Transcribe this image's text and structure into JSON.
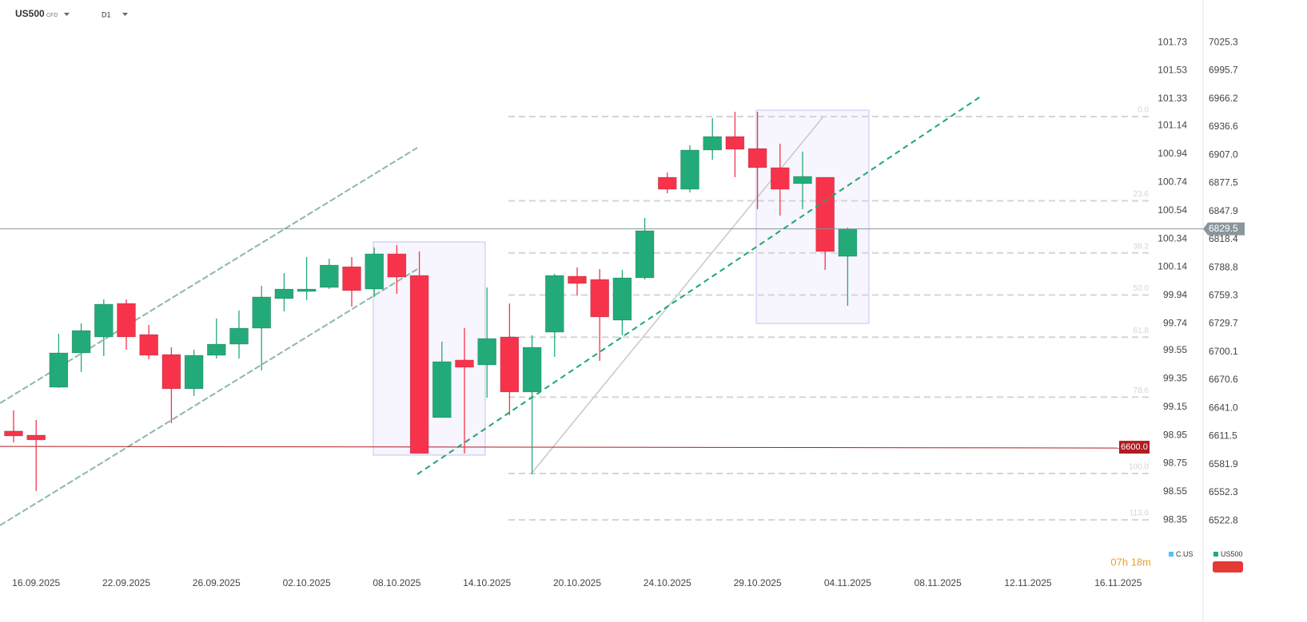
{
  "header": {
    "symbol": "US500",
    "instrument_type": "CFD",
    "timeframe": "D1"
  },
  "chart_data": {
    "type": "candlestick",
    "categories": [
      null,
      "16.09.2025",
      null,
      null,
      null,
      "22.09.2025",
      null,
      null,
      null,
      "26.09.2025",
      null,
      null,
      null,
      "02.10.2025",
      null,
      null,
      null,
      "08.10.2025",
      null,
      null,
      null,
      "14.10.2025",
      null,
      null,
      null,
      "20.10.2025",
      null,
      null,
      null,
      "24.10.2025",
      null,
      null,
      null,
      "29.10.2025",
      null,
      null,
      null,
      "04.11.2025",
      null,
      null,
      null,
      "08.11.2025",
      null,
      null,
      null,
      "12.11.2025",
      null,
      null,
      null,
      "16.11.2025"
    ],
    "series": [
      {
        "name": "US500",
        "up_color": "#22ab78",
        "down_color": "#f7334b",
        "open": [
          6617.0,
          6612.7,
          6663.0,
          6699.1,
          6715.9,
          6751.1,
          6718.4,
          6697.4,
          6661.4,
          6696.6,
          6708.3,
          6725.1,
          6756.2,
          6763.7,
          6767.9,
          6789.7,
          6766.2,
          6803.2,
          6780.5,
          6631.1,
          6691.6,
          6686.5,
          6715.9,
          6658.0,
          6720.9,
          6779.7,
          6776.3,
          6733.5,
          6778.0,
          6883.7,
          6871.1,
          6912.3,
          6926.5,
          6913.9,
          6893.8,
          6877.0,
          6883.7,
          6800.6,
          null,
          null,
          null,
          null,
          null,
          null,
          null,
          null,
          null,
          null,
          null,
          null
        ],
        "high": [
          6638.7,
          6628.6,
          6719.3,
          6730.2,
          6755.3,
          6755.3,
          6728.5,
          6705.0,
          6702.5,
          6735.2,
          6743.6,
          6769.6,
          6783.0,
          6799.8,
          6798.1,
          6799.8,
          6809.9,
          6812.4,
          6805.7,
          6710.9,
          6725.1,
          6767.9,
          6751.1,
          6717.6,
          6782.2,
          6788.9,
          6787.2,
          6786.4,
          6840.9,
          6888.7,
          6917.3,
          6945.8,
          6952.5,
          6952.5,
          6919.0,
          6910.6,
          6883.7,
          6830.9,
          null,
          null,
          null,
          null,
          null,
          null,
          null,
          null,
          null,
          null,
          null,
          null
        ],
        "low": [
          6605.1,
          6554.0,
          6662.2,
          6679.0,
          6695.8,
          6702.5,
          6692.4,
          6625.3,
          6653.8,
          6693.2,
          6693.2,
          6680.7,
          6742.7,
          6754.5,
          6766.2,
          6747.8,
          6757.9,
          6761.2,
          6593.4,
          6631.1,
          6593.4,
          6652.1,
          6633.7,
          6571.6,
          6694.9,
          6759.5,
          6690.7,
          6717.6,
          6776.3,
          6866.9,
          6867.8,
          6902.2,
          6883.7,
          6850.2,
          6843.4,
          6850.2,
          6786.4,
          6748.6,
          null,
          null,
          null,
          null,
          null,
          null,
          null,
          null,
          null,
          null,
          null,
          null
        ],
        "close": [
          6611.8,
          6607.7,
          6699.1,
          6722.6,
          6750.3,
          6715.9,
          6696.6,
          6661.4,
          6696.6,
          6708.3,
          6725.1,
          6757.9,
          6766.2,
          6766.2,
          6791.4,
          6764.6,
          6803.2,
          6778.8,
          6593.4,
          6689.9,
          6684.0,
          6714.2,
          6658.0,
          6705.0,
          6780.5,
          6772.1,
          6736.9,
          6778.0,
          6827.5,
          6871.1,
          6912.3,
          6926.5,
          6913.1,
          6893.8,
          6871.1,
          6884.6,
          6805.7,
          6829.5,
          null,
          null,
          null,
          null,
          null,
          null,
          null,
          null,
          null,
          null,
          null,
          null
        ]
      }
    ],
    "ylim": [
      6470,
      7070
    ],
    "yticks": [
      7025.3,
      6995.7,
      6966.2,
      6936.6,
      {
        "value": 6907,
        "label": "6907.0"
      },
      6877.5,
      6847.9,
      6818.4,
      6788.8,
      6759.3,
      6729.7,
      6700.1,
      6670.6,
      {
        "value": 6641,
        "label": "6641.0"
      },
      6611.5,
      6581.9,
      6552.3,
      6522.8
    ],
    "y2lim": [
      97.99,
      102.03
    ],
    "y2ticks": [
      101.73,
      101.53,
      101.33,
      101.14,
      100.94,
      100.74,
      100.54,
      100.34,
      100.14,
      99.94,
      99.74,
      99.55,
      99.35,
      99.15,
      98.95,
      98.75,
      98.55,
      98.35
    ],
    "last_price": 6829.5,
    "last_price_color": "#8a959c",
    "level": {
      "value": 6600,
      "label": "6600.0",
      "color": "#b01c22"
    },
    "fibonacci": {
      "high": 6947.5,
      "low": 6572.4,
      "color": "#d5d5d8",
      "levels": [
        {
          "value": 0,
          "label": "0.0"
        },
        23.6,
        38.2,
        {
          "value": 50,
          "label": "50.0"
        },
        61.8,
        78.6,
        {
          "value": 100,
          "label": "100.0"
        },
        {
          "value": 113,
          "label": "113.0"
        }
      ]
    },
    "legend": [
      {
        "name": "C.US",
        "color": "#4fc3f7"
      },
      {
        "name": "US500",
        "color": "#22ab78"
      }
    ],
    "countdown": "07h 18m"
  }
}
